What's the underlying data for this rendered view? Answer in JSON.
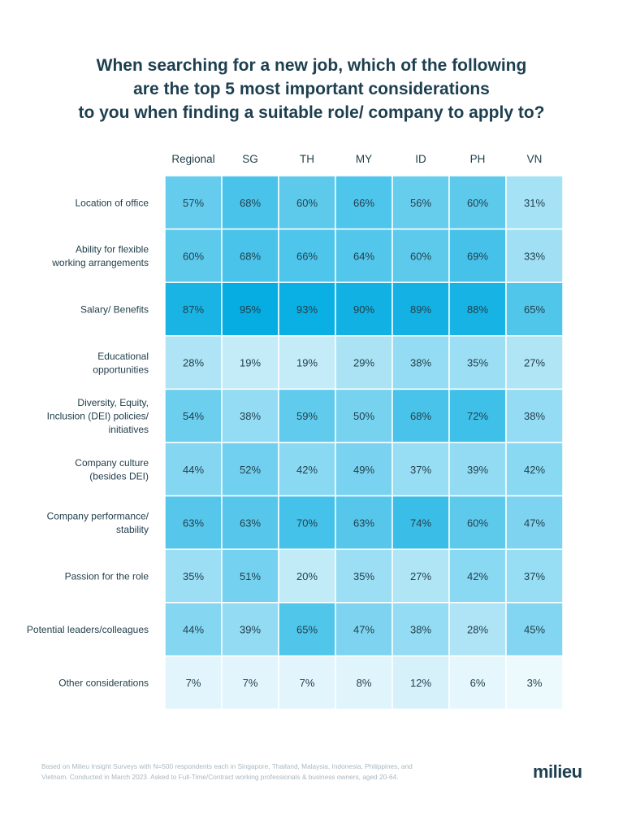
{
  "chart_data": {
    "type": "heatmap",
    "title": [
      "When searching for a new job, which of the following",
      "are the top 5 most important considerations",
      "to you when finding a suitable role/ company to apply to?"
    ],
    "columns": [
      "Regional",
      "SG",
      "TH",
      "MY",
      "ID",
      "PH",
      "VN"
    ],
    "rows": [
      {
        "label": [
          "Location of office"
        ],
        "values": [
          57,
          68,
          60,
          66,
          56,
          60,
          31
        ]
      },
      {
        "label": [
          "Ability for flexible",
          "working arrangements"
        ],
        "values": [
          60,
          68,
          66,
          64,
          60,
          69,
          33
        ]
      },
      {
        "label": [
          "Salary/ Benefits"
        ],
        "values": [
          87,
          95,
          93,
          90,
          89,
          88,
          65
        ]
      },
      {
        "label": [
          "Educational",
          "opportunities"
        ],
        "values": [
          28,
          19,
          19,
          29,
          38,
          35,
          27
        ]
      },
      {
        "label": [
          "Diversity, Equity,",
          "Inclusion (DEI) policies/",
          "initiatives"
        ],
        "values": [
          54,
          38,
          59,
          50,
          68,
          72,
          38
        ]
      },
      {
        "label": [
          "Company culture",
          "(besides DEI)"
        ],
        "values": [
          44,
          52,
          42,
          49,
          37,
          39,
          42
        ]
      },
      {
        "label": [
          "Company performance/",
          "stability"
        ],
        "values": [
          63,
          63,
          70,
          63,
          74,
          60,
          47
        ]
      },
      {
        "label": [
          "Passion for the role"
        ],
        "values": [
          35,
          51,
          20,
          35,
          27,
          42,
          37
        ]
      },
      {
        "label": [
          "Potential leaders/colleagues"
        ],
        "values": [
          44,
          39,
          65,
          47,
          38,
          28,
          45
        ]
      },
      {
        "label": [
          "Other considerations"
        ],
        "values": [
          7,
          7,
          7,
          8,
          12,
          6,
          3
        ]
      }
    ],
    "value_suffix": "%",
    "colors": {
      "low": "#f4fbfe",
      "high": "#05ade2",
      "text": "#23404d"
    }
  },
  "footnote": [
    "Based on Milieu Insight Surveys with N=500 respondents each in Singapore, Thailand, Malaysia, Indonesia, Philippines, and",
    "Vietnam. Conducted in March 2023. Asked to Full-Time/Contract working professionals & business owners, aged 20-64."
  ],
  "logo": "milieu"
}
